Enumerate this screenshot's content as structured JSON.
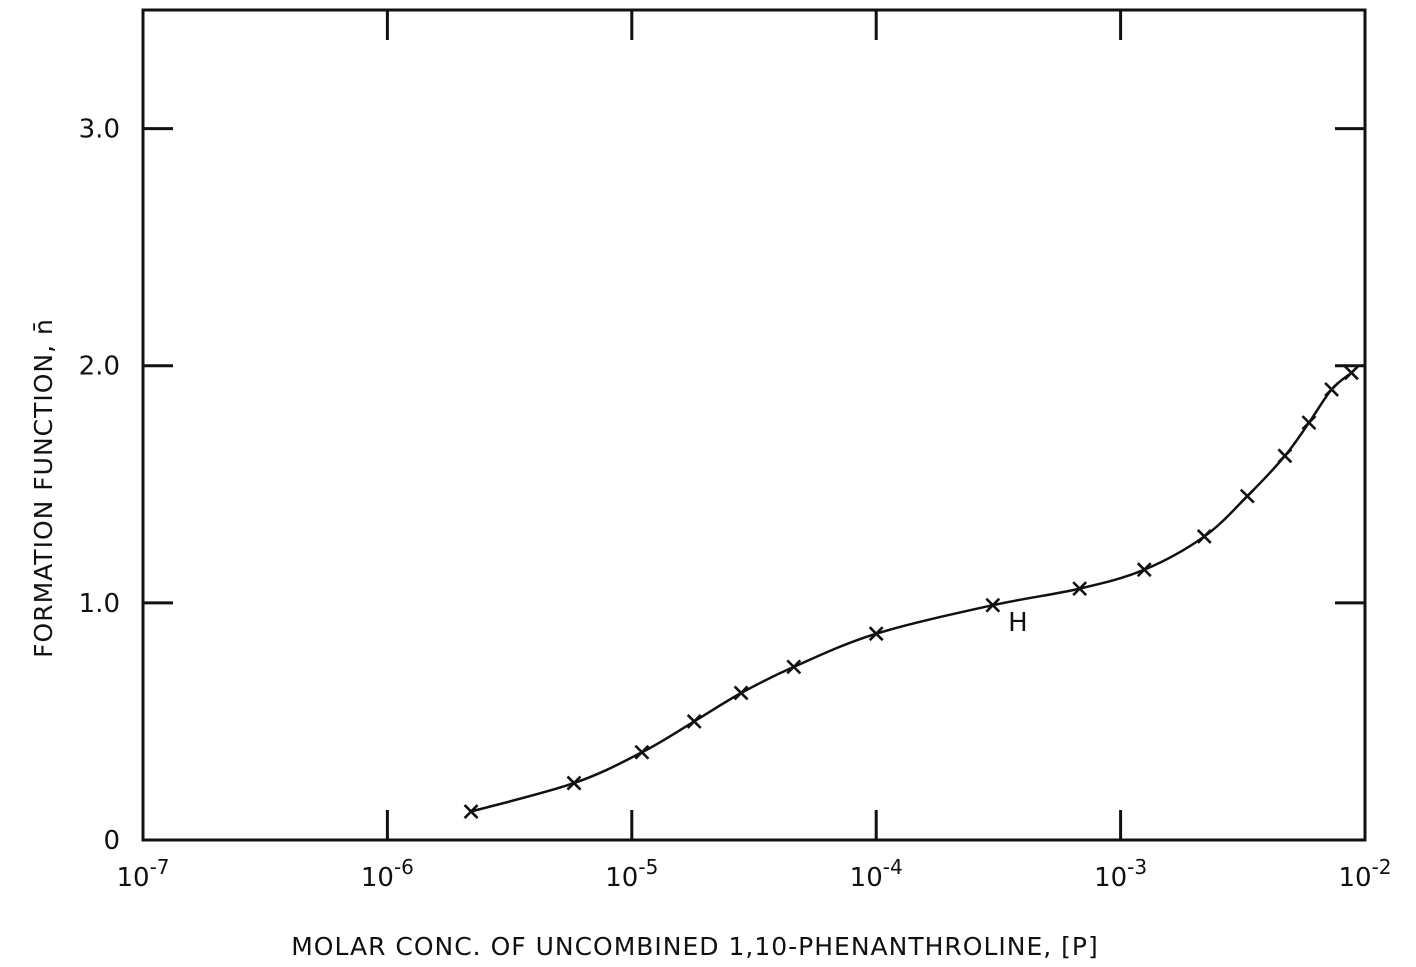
{
  "chart_data": {
    "type": "line",
    "title": "",
    "xlabel": "MOLAR CONC. OF UNCOMBINED 1,10-PHENANTHROLINE, [P]",
    "ylabel": "FORMATION FUNCTION, n̄",
    "xscale": "log",
    "xlim": [
      1e-07,
      0.01
    ],
    "ylim": [
      0,
      3.5
    ],
    "grid": false,
    "x_ticks": [
      {
        "value": 1e-07,
        "base": "10",
        "exp": "-7"
      },
      {
        "value": 1e-06,
        "base": "10",
        "exp": "-6"
      },
      {
        "value": 1e-05,
        "base": "10",
        "exp": "-5"
      },
      {
        "value": 0.0001,
        "base": "10",
        "exp": "-4"
      },
      {
        "value": 0.001,
        "base": "10",
        "exp": "-3"
      },
      {
        "value": 0.01,
        "base": "10",
        "exp": "-2"
      }
    ],
    "y_ticks": [
      {
        "value": 0,
        "label": "0"
      },
      {
        "value": 1.0,
        "label": "1.0"
      },
      {
        "value": 2.0,
        "label": "2.0"
      },
      {
        "value": 3.0,
        "label": "3.0"
      }
    ],
    "series": [
      {
        "marker": "x",
        "x": [
          2.2e-06,
          5.8e-06,
          1.1e-05,
          1.8e-05,
          2.8e-05,
          4.6e-05,
          0.0001,
          0.0003,
          0.00068,
          0.00125,
          0.0022,
          0.0033,
          0.0047,
          0.0059,
          0.0073,
          0.0088
        ],
        "y": [
          0.12,
          0.24,
          0.37,
          0.5,
          0.62,
          0.73,
          0.87,
          0.99,
          1.06,
          1.14,
          1.28,
          1.45,
          1.62,
          1.76,
          1.9,
          1.97
        ]
      }
    ],
    "annotations": [
      {
        "text": "H",
        "x": 0.00038,
        "y": 0.92
      }
    ]
  }
}
